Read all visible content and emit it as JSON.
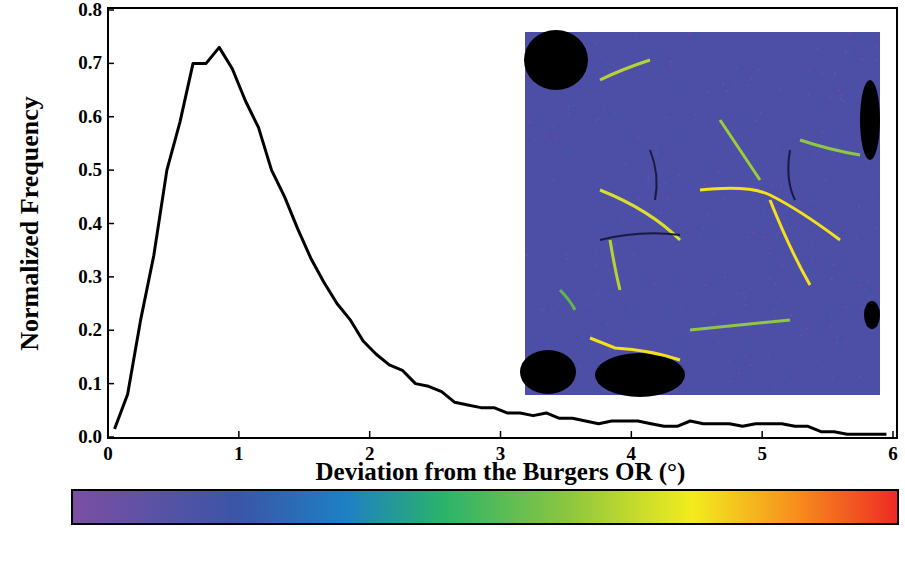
{
  "chart_data": {
    "type": "line",
    "x_label": "Deviation from the Burgers OR (°)",
    "y_label": "Normalized Frequency",
    "color": "#000000",
    "x": [
      0.05,
      0.15,
      0.25,
      0.35,
      0.45,
      0.55,
      0.65,
      0.75,
      0.85,
      0.95,
      1.05,
      1.15,
      1.25,
      1.35,
      1.45,
      1.55,
      1.65,
      1.75,
      1.85,
      1.95,
      2.05,
      2.15,
      2.25,
      2.35,
      2.45,
      2.55,
      2.65,
      2.75,
      2.85,
      2.95,
      3.05,
      3.15,
      3.25,
      3.35,
      3.45,
      3.55,
      3.65,
      3.75,
      3.85,
      3.95,
      4.05,
      4.15,
      4.25,
      4.35,
      4.45,
      4.55,
      4.65,
      4.75,
      4.85,
      4.95,
      5.05,
      5.15,
      5.25,
      5.35,
      5.45,
      5.55,
      5.65,
      5.75,
      5.85,
      5.95
    ],
    "values": [
      0.015,
      0.08,
      0.22,
      0.34,
      0.5,
      0.59,
      0.7,
      0.7,
      0.73,
      0.69,
      0.63,
      0.58,
      0.5,
      0.45,
      0.39,
      0.335,
      0.29,
      0.25,
      0.22,
      0.18,
      0.155,
      0.135,
      0.125,
      0.1,
      0.095,
      0.085,
      0.065,
      0.06,
      0.055,
      0.055,
      0.045,
      0.045,
      0.04,
      0.045,
      0.035,
      0.035,
      0.03,
      0.025,
      0.03,
      0.03,
      0.03,
      0.025,
      0.02,
      0.02,
      0.03,
      0.025,
      0.025,
      0.025,
      0.02,
      0.025,
      0.025,
      0.025,
      0.02,
      0.02,
      0.01,
      0.01,
      0.005,
      0.005,
      0.005,
      0.005
    ],
    "xlim": [
      0,
      6
    ],
    "xticks": [
      0,
      1,
      2,
      3,
      4,
      5,
      6
    ],
    "ylim": [
      0,
      0.8
    ],
    "yticks": [
      {
        "value": 0,
        "label": "0.0"
      },
      0.1,
      0.2,
      0.3,
      0.4,
      0.5,
      0.6,
      0.7,
      0.8
    ]
  }
}
